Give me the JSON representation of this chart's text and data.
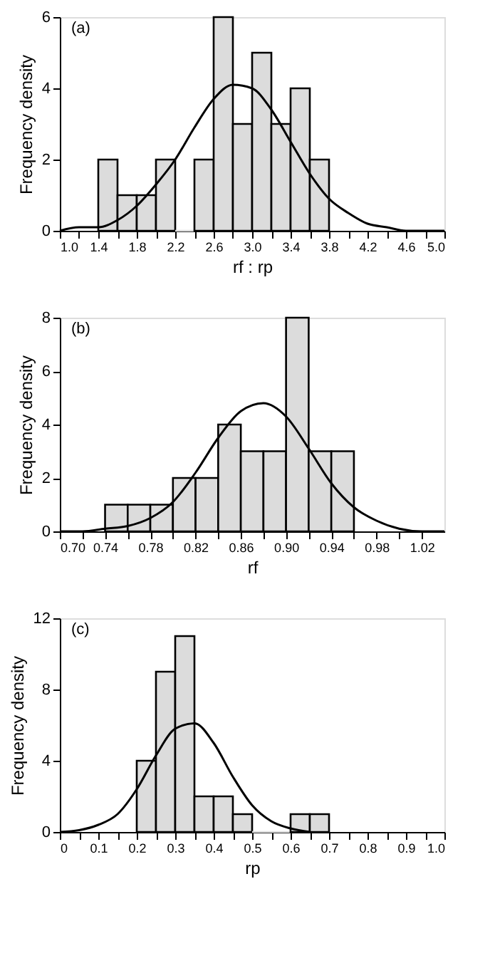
{
  "chart_data": [
    {
      "type": "histogram",
      "annotations": [
        "(a)"
      ],
      "xlabel": "rf : rp",
      "ylabel": "Frequency density",
      "color": "#dcdcdc",
      "bins": [
        1.4,
        1.6,
        1.8,
        2.0,
        2.2,
        2.4,
        2.6,
        2.8,
        3.0,
        3.2,
        3.4,
        3.6,
        3.8
      ],
      "values": [
        2,
        1,
        1,
        2,
        0,
        2,
        6,
        3,
        5,
        3,
        4,
        2
      ],
      "series": [
        {
          "type": "line",
          "color": "#000000",
          "x": [
            1.0,
            1.2,
            1.4,
            1.6,
            1.8,
            2.0,
            2.2,
            2.4,
            2.6,
            2.8,
            3.0,
            3.2,
            3.4,
            3.6,
            3.8,
            4.0,
            4.2,
            4.4,
            4.6,
            4.8,
            5.0
          ],
          "values": [
            0.0,
            0.1,
            0.1,
            0.3,
            0.7,
            1.3,
            2.0,
            2.9,
            3.7,
            4.1,
            4.0,
            3.4,
            2.5,
            1.6,
            0.9,
            0.5,
            0.2,
            0.1,
            0.0,
            0.0,
            0.0
          ]
        }
      ],
      "xlim": [
        1.0,
        5.0
      ],
      "ylim": [
        0,
        6
      ],
      "yticks": [
        0,
        2,
        4,
        6
      ],
      "grid": false,
      "xticks": [
        {
          "value": 1.0,
          "label": "1.0"
        },
        {
          "value": 1.2,
          "label": null
        },
        {
          "value": 1.4,
          "label": "1.4"
        },
        {
          "value": 1.6,
          "label": null
        },
        {
          "value": 1.8,
          "label": "1.8"
        },
        {
          "value": 2.0,
          "label": null
        },
        {
          "value": 2.2,
          "label": "2.2"
        },
        {
          "value": 2.4,
          "label": null
        },
        {
          "value": 2.6,
          "label": "2.6"
        },
        {
          "value": 2.8,
          "label": null
        },
        {
          "value": 3.0,
          "label": "3.0"
        },
        {
          "value": 3.2,
          "label": null
        },
        {
          "value": 3.4,
          "label": "3.4"
        },
        {
          "value": 3.6,
          "label": null
        },
        {
          "value": 3.8,
          "label": "3.8"
        },
        {
          "value": 4.0,
          "label": null
        },
        {
          "value": 4.2,
          "label": "4.2"
        },
        {
          "value": 4.4,
          "label": null
        },
        {
          "value": 4.6,
          "label": "4.6"
        },
        {
          "value": 4.8,
          "label": null
        },
        {
          "value": 5.0,
          "label": "5.0"
        }
      ]
    },
    {
      "type": "histogram",
      "annotations": [
        "(b)"
      ],
      "xlabel": "rf",
      "ylabel": "Frequency density",
      "color": "#dcdcdc",
      "bins": [
        0.74,
        0.76,
        0.78,
        0.8,
        0.82,
        0.84,
        0.86,
        0.88,
        0.9,
        0.92,
        0.94,
        0.96
      ],
      "values": [
        1,
        1,
        1,
        2,
        2,
        4,
        3,
        3,
        8,
        3,
        3
      ],
      "series": [
        {
          "type": "line",
          "color": "#000000",
          "x": [
            0.7,
            0.72,
            0.74,
            0.76,
            0.78,
            0.8,
            0.82,
            0.84,
            0.86,
            0.88,
            0.9,
            0.92,
            0.94,
            0.96,
            0.98,
            1.0,
            1.02,
            1.04
          ],
          "values": [
            0.0,
            0.0,
            0.1,
            0.2,
            0.5,
            1.1,
            2.2,
            3.5,
            4.5,
            4.8,
            4.3,
            3.1,
            1.8,
            0.9,
            0.4,
            0.1,
            0.0,
            0.0
          ]
        }
      ],
      "xlim": [
        0.7,
        1.04
      ],
      "ylim": [
        0,
        8
      ],
      "yticks": [
        0,
        2,
        4,
        6,
        8
      ],
      "grid": false,
      "xticks": [
        {
          "value": 0.7,
          "label": "0.70"
        },
        {
          "value": 0.72,
          "label": null
        },
        {
          "value": 0.74,
          "label": "0.74"
        },
        {
          "value": 0.76,
          "label": null
        },
        {
          "value": 0.78,
          "label": "0.78"
        },
        {
          "value": 0.8,
          "label": null
        },
        {
          "value": 0.82,
          "label": "0.82"
        },
        {
          "value": 0.84,
          "label": null
        },
        {
          "value": 0.86,
          "label": "0.86"
        },
        {
          "value": 0.88,
          "label": null
        },
        {
          "value": 0.9,
          "label": "0.90"
        },
        {
          "value": 0.92,
          "label": null
        },
        {
          "value": 0.94,
          "label": "0.94"
        },
        {
          "value": 0.96,
          "label": null
        },
        {
          "value": 0.98,
          "label": "0.98"
        },
        {
          "value": 1.0,
          "label": null
        },
        {
          "value": 1.02,
          "label": "1.02"
        }
      ]
    },
    {
      "type": "histogram",
      "annotations": [
        "(c)"
      ],
      "xlabel": "rp",
      "ylabel": "Frequency density",
      "color": "#dcdcdc",
      "bins": [
        0.2,
        0.25,
        0.3,
        0.35,
        0.4,
        0.45,
        0.5,
        0.55,
        0.6,
        0.65,
        0.7
      ],
      "values": [
        4,
        9,
        11,
        2,
        2,
        1,
        0,
        0,
        1,
        1
      ],
      "series": [
        {
          "type": "line",
          "color": "#000000",
          "x": [
            0.0,
            0.05,
            0.1,
            0.15,
            0.2,
            0.25,
            0.3,
            0.35,
            0.4,
            0.45,
            0.5,
            0.55,
            0.6,
            0.65
          ],
          "values": [
            0.0,
            0.1,
            0.4,
            1.0,
            2.4,
            4.3,
            5.8,
            6.1,
            5.0,
            3.1,
            1.5,
            0.6,
            0.2,
            0.0
          ]
        }
      ],
      "xlim": [
        0,
        1.0
      ],
      "ylim": [
        0,
        12
      ],
      "yticks": [
        0,
        4,
        8,
        12
      ],
      "grid": false,
      "xticks": [
        {
          "value": 0,
          "label": "0"
        },
        {
          "value": 0.05,
          "label": null
        },
        {
          "value": 0.1,
          "label": "0.1"
        },
        {
          "value": 0.15,
          "label": null
        },
        {
          "value": 0.2,
          "label": "0.2"
        },
        {
          "value": 0.25,
          "label": null
        },
        {
          "value": 0.3,
          "label": "0.3"
        },
        {
          "value": 0.35,
          "label": null
        },
        {
          "value": 0.4,
          "label": "0.4"
        },
        {
          "value": 0.45,
          "label": null
        },
        {
          "value": 0.5,
          "label": "0.5"
        },
        {
          "value": 0.55,
          "label": null
        },
        {
          "value": 0.6,
          "label": "0.6"
        },
        {
          "value": 0.65,
          "label": null
        },
        {
          "value": 0.7,
          "label": "0.7"
        },
        {
          "value": 0.75,
          "label": null
        },
        {
          "value": 0.8,
          "label": "0.8"
        },
        {
          "value": 0.85,
          "label": null
        },
        {
          "value": 0.9,
          "label": "0.9"
        },
        {
          "value": 0.95,
          "label": null
        },
        {
          "value": 1.0,
          "label": "1.0"
        }
      ]
    }
  ]
}
